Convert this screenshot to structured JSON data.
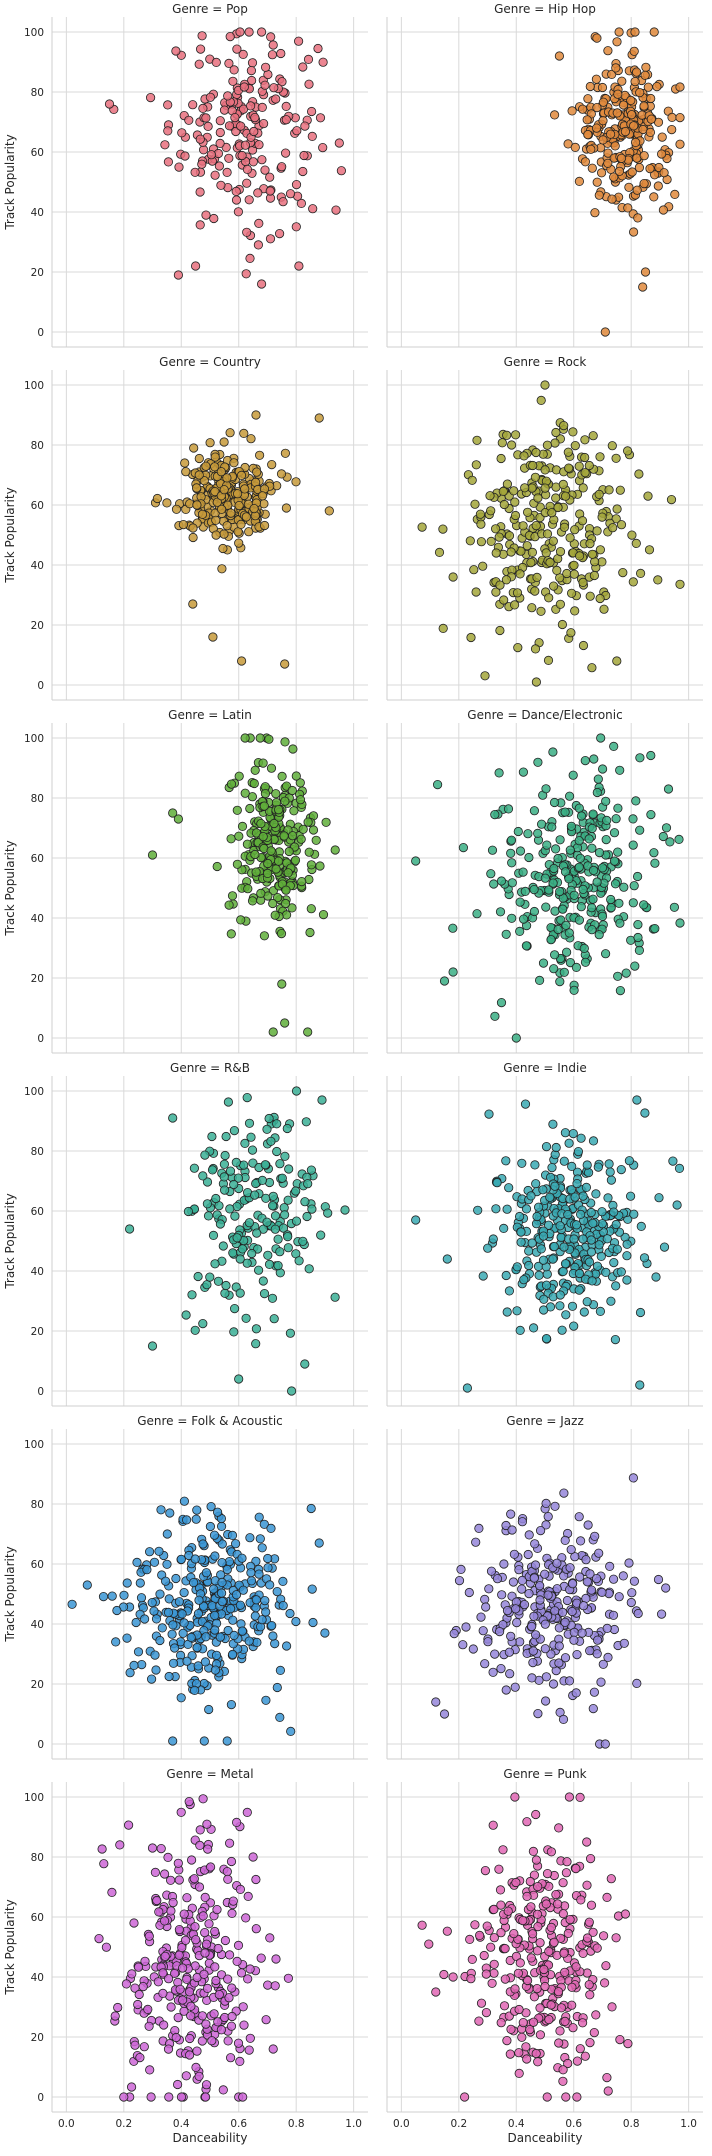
{
  "chart_data": {
    "type": "scatter",
    "xlabel": "Danceability",
    "ylabel": "Track Popularity",
    "xlim": [
      -0.05,
      1.05
    ],
    "ylim": [
      -5,
      105
    ],
    "x_ticks": [
      "0.0",
      "0.2",
      "0.4",
      "0.6",
      "0.8",
      "1.0"
    ],
    "y_ticks": [
      "0",
      "20",
      "40",
      "60",
      "80",
      "100"
    ],
    "grid": true,
    "facet_title_prefix": "Genre = ",
    "facets": [
      {
        "genre": "Pop",
        "color": "#e8707e",
        "cx": 0.62,
        "cy": 68,
        "sx": 0.13,
        "sy": 17,
        "n": 210,
        "outliers": [
          [
            0.15,
            76
          ],
          [
            0.39,
            19
          ],
          [
            0.45,
            22
          ],
          [
            0.95,
            63
          ]
        ]
      },
      {
        "genre": "Hip Hop",
        "color": "#e08a3c",
        "cx": 0.78,
        "cy": 68,
        "sx": 0.08,
        "sy": 13,
        "n": 260,
        "outliers": [
          [
            0.71,
            0
          ],
          [
            0.84,
            15
          ],
          [
            0.85,
            20
          ],
          [
            0.55,
            92
          ],
          [
            0.88,
            100
          ]
        ]
      },
      {
        "genre": "Country",
        "color": "#c79a3a",
        "cx": 0.56,
        "cy": 63,
        "sx": 0.08,
        "sy": 8,
        "n": 270,
        "outliers": [
          [
            0.44,
            27
          ],
          [
            0.51,
            16
          ],
          [
            0.61,
            8
          ],
          [
            0.76,
            7
          ],
          [
            0.88,
            89
          ],
          [
            0.66,
            90
          ]
        ]
      },
      {
        "genre": "Rock",
        "color": "#a3a63a",
        "cx": 0.5,
        "cy": 52,
        "sx": 0.15,
        "sy": 18,
        "n": 300,
        "outliers": [
          [
            0.18,
            36
          ],
          [
            0.26,
            31
          ],
          [
            0.47,
            1
          ],
          [
            0.75,
            8
          ]
        ]
      },
      {
        "genre": "Latin",
        "color": "#5fae3a",
        "cx": 0.72,
        "cy": 65,
        "sx": 0.07,
        "sy": 14,
        "n": 270,
        "outliers": [
          [
            0.3,
            61
          ],
          [
            0.37,
            75
          ],
          [
            0.39,
            73
          ],
          [
            0.72,
            2
          ],
          [
            0.76,
            5
          ],
          [
            0.84,
            2
          ],
          [
            0.75,
            18
          ]
        ]
      },
      {
        "genre": "Dance/Electronic",
        "color": "#3aae84",
        "cx": 0.62,
        "cy": 52,
        "sx": 0.14,
        "sy": 19,
        "n": 310,
        "outliers": [
          [
            0.05,
            59
          ],
          [
            0.15,
            19
          ],
          [
            0.18,
            22
          ],
          [
            0.4,
            0
          ],
          [
            0.67,
            93
          ],
          [
            0.93,
            83
          ]
        ]
      },
      {
        "genre": "R&B",
        "color": "#3aaf95",
        "cx": 0.65,
        "cy": 60,
        "sx": 0.12,
        "sy": 18,
        "n": 200,
        "outliers": [
          [
            0.3,
            15
          ],
          [
            0.6,
            4
          ],
          [
            0.83,
            9
          ],
          [
            0.89,
            97
          ],
          [
            0.37,
            91
          ],
          [
            0.22,
            54
          ]
        ]
      },
      {
        "genre": "Indie",
        "color": "#3aa9b3",
        "cx": 0.6,
        "cy": 51,
        "sx": 0.13,
        "sy": 14,
        "n": 340,
        "outliers": [
          [
            0.05,
            57
          ],
          [
            0.16,
            44
          ],
          [
            0.23,
            1
          ],
          [
            0.82,
            97
          ],
          [
            0.96,
            62
          ],
          [
            0.83,
            2
          ]
        ]
      },
      {
        "genre": "Folk & Acoustic",
        "color": "#3a95d4",
        "cx": 0.5,
        "cy": 47,
        "sx": 0.13,
        "sy": 14,
        "n": 340,
        "outliers": [
          [
            0.37,
            1
          ],
          [
            0.48,
            1
          ],
          [
            0.56,
            1
          ],
          [
            0.88,
            67
          ],
          [
            0.9,
            37
          ],
          [
            0.36,
            77
          ]
        ]
      },
      {
        "genre": "Jazz",
        "color": "#9586d9",
        "cx": 0.53,
        "cy": 45,
        "sx": 0.14,
        "sy": 14,
        "n": 290,
        "outliers": [
          [
            0.12,
            14
          ],
          [
            0.15,
            10
          ],
          [
            0.69,
            0
          ],
          [
            0.71,
            0
          ],
          [
            0.92,
            52
          ],
          [
            0.65,
            73
          ]
        ]
      },
      {
        "genre": "Metal",
        "color": "#cc66d6",
        "cx": 0.43,
        "cy": 42,
        "sx": 0.12,
        "sy": 22,
        "n": 320,
        "outliers": [
          [
            0.17,
            27
          ],
          [
            0.2,
            0
          ],
          [
            0.65,
            80
          ],
          [
            0.72,
            16
          ],
          [
            0.3,
            83
          ]
        ]
      },
      {
        "genre": "Punk",
        "color": "#e066b4",
        "cx": 0.5,
        "cy": 45,
        "sx": 0.12,
        "sy": 20,
        "n": 300,
        "outliers": [
          [
            0.12,
            35
          ],
          [
            0.18,
            40
          ],
          [
            0.22,
            0
          ],
          [
            0.72,
            2
          ],
          [
            0.78,
            61
          ],
          [
            0.47,
            79
          ]
        ]
      }
    ]
  }
}
